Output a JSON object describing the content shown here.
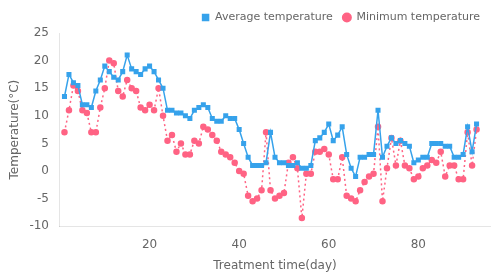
{
  "chart_data": {
    "type": "line",
    "xlabel": "Treatment time(day)",
    "ylabel": "Temperature(°C)",
    "x": [
      1,
      2,
      3,
      4,
      5,
      6,
      7,
      8,
      9,
      10,
      11,
      12,
      13,
      14,
      15,
      16,
      17,
      18,
      19,
      20,
      21,
      22,
      23,
      24,
      25,
      26,
      27,
      28,
      29,
      30,
      31,
      32,
      33,
      34,
      35,
      36,
      37,
      38,
      39,
      40,
      41,
      42,
      43,
      44,
      45,
      46,
      47,
      48,
      49,
      50,
      51,
      52,
      53,
      54,
      55,
      56,
      57,
      58,
      59,
      60,
      61,
      62,
      63,
      64,
      65,
      66,
      67,
      68,
      69,
      70,
      71,
      72,
      73,
      74,
      75,
      76,
      77,
      78,
      79,
      80,
      81,
      82,
      83,
      84,
      85,
      86,
      87,
      88,
      89,
      90,
      91,
      92,
      93
    ],
    "series": [
      {
        "name": "Average temperature",
        "marker": "square",
        "line_style": "solid",
        "values": [
          13.5,
          17.5,
          16.0,
          15.5,
          12.0,
          12.0,
          11.5,
          14.5,
          16.5,
          19.0,
          18.0,
          17.0,
          16.5,
          18.0,
          21.0,
          18.5,
          18.0,
          17.5,
          18.5,
          19.0,
          18.0,
          16.5,
          15.0,
          11.0,
          11.0,
          10.5,
          10.5,
          10.0,
          9.5,
          11.0,
          11.5,
          12.0,
          11.5,
          9.5,
          9.0,
          9.0,
          10.0,
          9.5,
          9.5,
          7.5,
          5.0,
          2.5,
          1.0,
          1.0,
          1.0,
          1.5,
          7.0,
          2.5,
          1.5,
          1.5,
          1.0,
          1.0,
          1.5,
          0.5,
          0.5,
          1.0,
          5.5,
          6.0,
          7.0,
          8.5,
          5.5,
          6.5,
          8.0,
          3.0,
          0.5,
          -1.0,
          2.5,
          2.5,
          3.0,
          3.0,
          11.0,
          2.5,
          4.5,
          6.0,
          5.0,
          5.5,
          5.0,
          4.5,
          1.5,
          2.0,
          2.5,
          2.5,
          5.0,
          5.0,
          5.0,
          4.5,
          4.5,
          2.5,
          2.5,
          3.0,
          8.0,
          3.5,
          8.5
        ]
      },
      {
        "name": "Minimum temperature",
        "marker": "circle",
        "line_style": "dotted",
        "values": [
          7.0,
          11.0,
          15.5,
          14.5,
          11.0,
          10.5,
          7.0,
          7.0,
          11.5,
          15.0,
          20.0,
          19.5,
          14.5,
          13.5,
          16.5,
          15.0,
          14.5,
          11.5,
          11.0,
          12.0,
          11.0,
          15.0,
          10.0,
          5.5,
          6.5,
          3.5,
          5.0,
          3.0,
          3.0,
          5.5,
          5.0,
          8.0,
          7.5,
          6.5,
          5.5,
          3.5,
          3.0,
          2.5,
          1.5,
          0.0,
          -0.5,
          -4.5,
          -5.5,
          -5.0,
          -3.5,
          7.0,
          -3.5,
          -5.0,
          -4.5,
          -4.0,
          1.5,
          2.5,
          0.5,
          -8.5,
          -0.5,
          -0.5,
          3.5,
          3.5,
          4.0,
          3.0,
          -1.5,
          -1.5,
          2.5,
          -4.5,
          -5.0,
          -5.5,
          -3.5,
          -2.0,
          -1.0,
          -0.5,
          8.0,
          -5.5,
          0.5,
          6.0,
          1.0,
          5.5,
          1.0,
          0.5,
          -1.5,
          -1.0,
          0.5,
          1.0,
          2.0,
          1.5,
          3.5,
          -1.0,
          1.0,
          1.0,
          -1.5,
          -1.5,
          7.0,
          1.0,
          7.5
        ]
      }
    ],
    "xlim": [
      0,
      96
    ],
    "xticks": [
      20,
      40,
      60,
      80
    ],
    "ylim": [
      -10,
      25
    ],
    "yticks": [
      -10,
      -5,
      0,
      5,
      10,
      15,
      20,
      25
    ],
    "grid": false,
    "legend": "upper right"
  }
}
